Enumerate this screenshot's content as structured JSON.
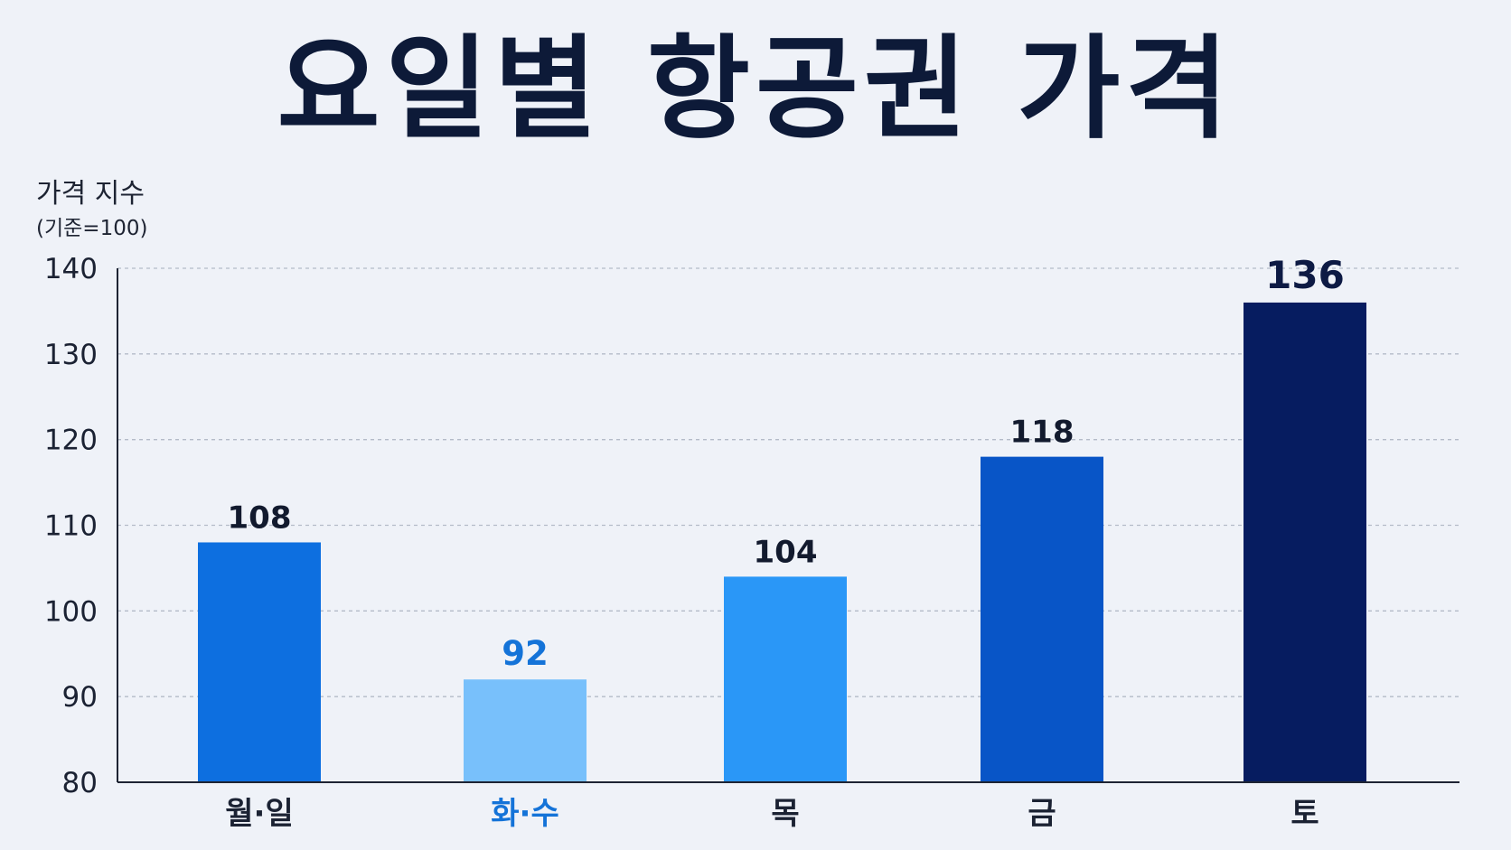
{
  "chart_data": {
    "type": "bar",
    "title": "요일별 항공권 가격",
    "ylabel": "가격 지수",
    "ylabel_sub": "(기준=100)",
    "xlabel": "",
    "categories": [
      "월·일",
      "화·수",
      "목",
      "금",
      "토"
    ],
    "values": [
      108,
      92,
      104,
      118,
      136
    ],
    "ylim": [
      80,
      140
    ],
    "yticks": [
      80,
      90,
      100,
      110,
      120,
      130,
      140
    ],
    "grid": true,
    "legend": "none",
    "highlight_category": "화·수",
    "bar_colors": [
      "#0d6fe0",
      "#78c0fb",
      "#2a97f7",
      "#0855c7",
      "#061c60"
    ],
    "category_label_colors": [
      "#1b2233",
      "#1473d8",
      "#1b2233",
      "#1b2233",
      "#1b2233"
    ],
    "data_label_colors": [
      "#121a2e",
      "#1473d8",
      "#121a2e",
      "#121a2e",
      "#0d1a44"
    ]
  }
}
